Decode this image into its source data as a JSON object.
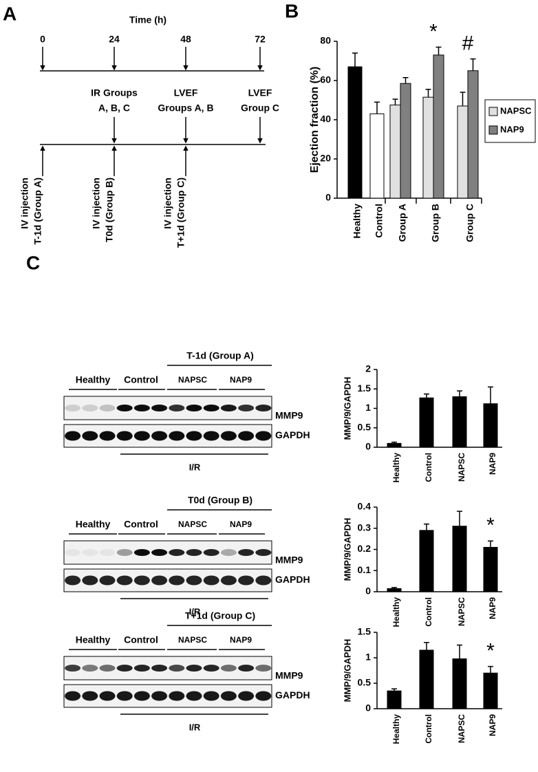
{
  "panel_labels": [
    "A",
    "B",
    "C"
  ],
  "timeline": {
    "title": "Time (h)",
    "ticks": [
      "0",
      "24",
      "48",
      "72"
    ],
    "events": [
      {
        "lines": [
          "IR Groups",
          "A, B, C"
        ]
      },
      {
        "lines": [
          "LVEF",
          "Groups A, B"
        ]
      },
      {
        "lines": [
          "LVEF",
          "Group C"
        ]
      }
    ],
    "injections": [
      {
        "lines": [
          "IV injection",
          "T-1d (Group A)"
        ]
      },
      {
        "lines": [
          "IV injection",
          "T0d (Group B)"
        ]
      },
      {
        "lines": [
          "IV injection",
          "T+1d (Group C)"
        ]
      }
    ]
  },
  "blots": [
    {
      "title": "T-1d (Group A)",
      "groups": [
        "Healthy",
        "Control",
        "NAPSC",
        "NAP9"
      ],
      "rows": [
        "MMP9",
        "GAPDH"
      ],
      "footer": "I/R"
    },
    {
      "title": "T0d (Group B)",
      "groups": [
        "Healthy",
        "Control",
        "NAPSC",
        "NAP9"
      ],
      "rows": [
        "MMP9",
        "GAPDH"
      ],
      "footer": "I/R"
    },
    {
      "title": "T+1d (Group C)",
      "groups": [
        "Healthy",
        "Control",
        "NAPSC",
        "NAP9"
      ],
      "rows": [
        "MMP9",
        "GAPDH"
      ],
      "footer": "I/R"
    }
  ],
  "chart_data": [
    {
      "type": "bar",
      "y_label": "Ejection fraction (%)",
      "categories": [
        "Healthy",
        "Control",
        "Group A",
        "Group B",
        "Group C"
      ],
      "values": [
        67,
        43,
        null,
        null,
        null
      ],
      "errors": [
        7,
        6,
        null,
        null,
        null
      ],
      "bar_colors": [
        "#000000",
        "#ffffff",
        null,
        null,
        null
      ],
      "series": [
        {
          "name": "NAPSC",
          "color": "#e0e0e0",
          "values": [
            null,
            null,
            47.5,
            51.5,
            47
          ],
          "errors": [
            null,
            null,
            3,
            4,
            7
          ]
        },
        {
          "name": "NAP9",
          "color": "#808080",
          "values": [
            null,
            null,
            58.5,
            73,
            65
          ],
          "errors": [
            null,
            null,
            3,
            4,
            6
          ]
        }
      ],
      "annotations": [
        {
          "text": "*",
          "category": "Group B"
        },
        {
          "text": "#",
          "category": "Group C"
        }
      ],
      "ylim": [
        0,
        80
      ],
      "yticks": [
        0,
        20,
        40,
        60,
        80
      ],
      "legend": "right"
    },
    {
      "type": "bar",
      "y_label": "MMP/9/GAPDH",
      "categories": [
        "Healthy",
        "Control",
        "NAPSC",
        "NAP9"
      ],
      "values": [
        0.1,
        1.27,
        1.3,
        1.12
      ],
      "errors": [
        0.03,
        0.1,
        0.15,
        0.43
      ],
      "color": "#000000",
      "ylim": [
        0,
        2
      ],
      "yticks": [
        0,
        0.5,
        1,
        1.5,
        2
      ]
    },
    {
      "type": "bar",
      "y_label": "MMP/9/GAPDH",
      "categories": [
        "Healthy",
        "Control",
        "NAPSC",
        "NAP9"
      ],
      "values": [
        0.015,
        0.29,
        0.31,
        0.21
      ],
      "errors": [
        0.005,
        0.03,
        0.07,
        0.03
      ],
      "color": "#000000",
      "annotations": [
        {
          "text": "*",
          "category": "NAP9"
        }
      ],
      "ylim": [
        0,
        0.4
      ],
      "yticks": [
        0,
        0.1,
        0.2,
        0.3,
        0.4
      ]
    },
    {
      "type": "bar",
      "y_label": "MMP/9/GAPDH",
      "categories": [
        "Healthy",
        "Control",
        "NAPSC",
        "NAP9"
      ],
      "values": [
        0.35,
        1.15,
        0.98,
        0.7
      ],
      "errors": [
        0.04,
        0.15,
        0.27,
        0.13
      ],
      "color": "#000000",
      "annotations": [
        {
          "text": "*",
          "category": "NAP9"
        }
      ],
      "ylim": [
        0,
        1.5
      ],
      "yticks": [
        0,
        0.5,
        1,
        1.5
      ]
    }
  ]
}
